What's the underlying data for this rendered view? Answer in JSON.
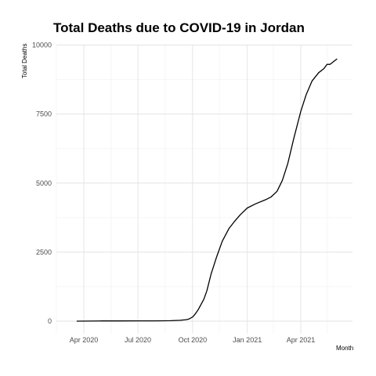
{
  "chart_data": {
    "type": "line",
    "title": "Total Deaths due to COVID-19 in Jordan",
    "xlabel": "Month",
    "ylabel": "Total Deaths",
    "x_ticks": [
      "Apr 2020",
      "Jul 2020",
      "Oct 2020",
      "Jan 2021",
      "Apr 2021"
    ],
    "y_ticks": [
      "0",
      "2500",
      "5000",
      "7500",
      "10000"
    ],
    "ylim": [
      0,
      10000
    ],
    "xlim": [
      "2020-03-01",
      "2021-06-15"
    ],
    "grid": true,
    "line_color": "#000000",
    "series": [
      {
        "x": [
          "2020-03-20",
          "2020-05-01",
          "2020-06-01",
          "2020-07-01",
          "2020-08-01",
          "2020-08-25",
          "2020-09-10",
          "2020-09-20",
          "2020-09-25",
          "2020-10-01",
          "2020-10-05",
          "2020-10-10",
          "2020-10-15",
          "2020-10-20",
          "2020-10-25",
          "2020-11-01",
          "2020-11-10",
          "2020-11-20",
          "2020-12-01",
          "2020-12-10",
          "2020-12-20",
          "2021-01-01",
          "2021-01-15",
          "2021-02-01",
          "2021-02-10",
          "2021-02-20",
          "2021-03-01",
          "2021-03-10",
          "2021-03-20",
          "2021-04-01",
          "2021-04-10",
          "2021-04-20",
          "2021-05-01",
          "2021-05-10",
          "2021-05-15",
          "2021-05-20",
          "2021-06-01"
        ],
        "y": [
          0,
          9,
          9,
          11,
          11,
          17,
          30,
          55,
          80,
          150,
          250,
          400,
          600,
          800,
          1100,
          1700,
          2300,
          2900,
          3350,
          3600,
          3850,
          4100,
          4250,
          4400,
          4500,
          4700,
          5100,
          5700,
          6600,
          7600,
          8200,
          8700,
          9000,
          9150,
          9300,
          9300,
          9500
        ]
      }
    ]
  }
}
